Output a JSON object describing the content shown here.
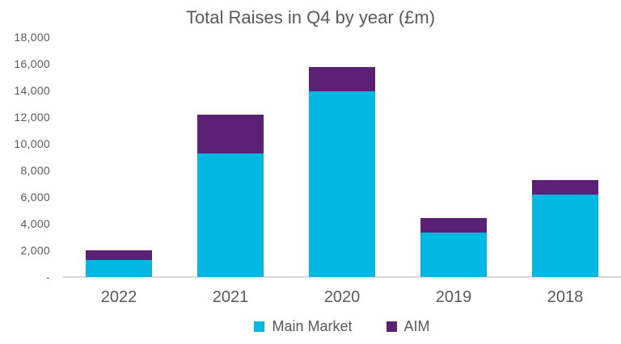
{
  "chart_data": {
    "type": "bar",
    "stacked": true,
    "title": "Total Raises in Q4 by year (£m)",
    "categories": [
      "2022",
      "2021",
      "2020",
      "2019",
      "2018"
    ],
    "series": [
      {
        "name": "Main Market",
        "color": "#00b8e2",
        "values": [
          1300,
          9300,
          13950,
          3350,
          6200
        ]
      },
      {
        "name": "AIM",
        "color": "#5b2175",
        "values": [
          700,
          2900,
          1800,
          1100,
          1050
        ]
      }
    ],
    "totals": [
      2000,
      12200,
      15750,
      4450,
      7250
    ],
    "xlabel": "",
    "ylabel": "",
    "ylim": [
      0,
      18000
    ],
    "ytick_step": 2000,
    "yticks": [
      {
        "value": 0,
        "label": "-"
      },
      {
        "value": 2000,
        "label": "2,000"
      },
      {
        "value": 4000,
        "label": "4,000"
      },
      {
        "value": 6000,
        "label": "6,000"
      },
      {
        "value": 8000,
        "label": "8,000"
      },
      {
        "value": 10000,
        "label": "10,000"
      },
      {
        "value": 12000,
        "label": "12,000"
      },
      {
        "value": 14000,
        "label": "14,000"
      },
      {
        "value": 16000,
        "label": "16,000"
      },
      {
        "value": 18000,
        "label": "18,000"
      }
    ],
    "grid": false,
    "legend_position": "bottom",
    "colors": {
      "axis_line": "#d9d9d9",
      "text": "#595959",
      "background": "#ffffff"
    }
  }
}
